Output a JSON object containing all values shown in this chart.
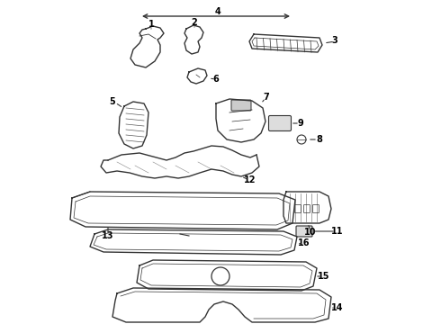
{
  "bg_color": "#ffffff",
  "line_color": "#333333",
  "text_color": "#000000",
  "lw": 1.0
}
